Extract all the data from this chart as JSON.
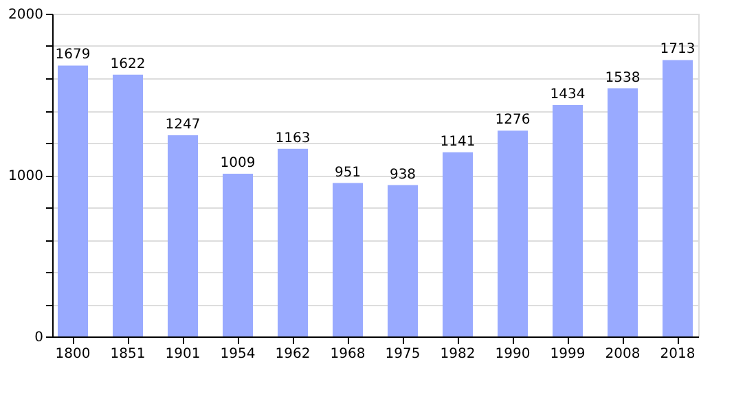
{
  "chart_data": {
    "type": "bar",
    "categories": [
      "1800",
      "1851",
      "1901",
      "1954",
      "1962",
      "1968",
      "1975",
      "1982",
      "1990",
      "1999",
      "2008",
      "2018"
    ],
    "values": [
      1679,
      1622,
      1247,
      1009,
      1163,
      951,
      938,
      1141,
      1276,
      1434,
      1538,
      1713
    ],
    "color": "#99aaff",
    "ylim": [
      0,
      2000
    ],
    "yticks": [
      0,
      {
        "value": 200,
        "label": null
      },
      {
        "value": 400,
        "label": null
      },
      {
        "value": 600,
        "label": null
      },
      {
        "value": 800,
        "label": null
      },
      1000,
      {
        "value": 1200,
        "label": null
      },
      {
        "value": 1400,
        "label": null
      },
      {
        "value": 1600,
        "label": null
      },
      {
        "value": 1800,
        "label": null
      },
      2000
    ],
    "grid": "y",
    "data_labels": true
  }
}
